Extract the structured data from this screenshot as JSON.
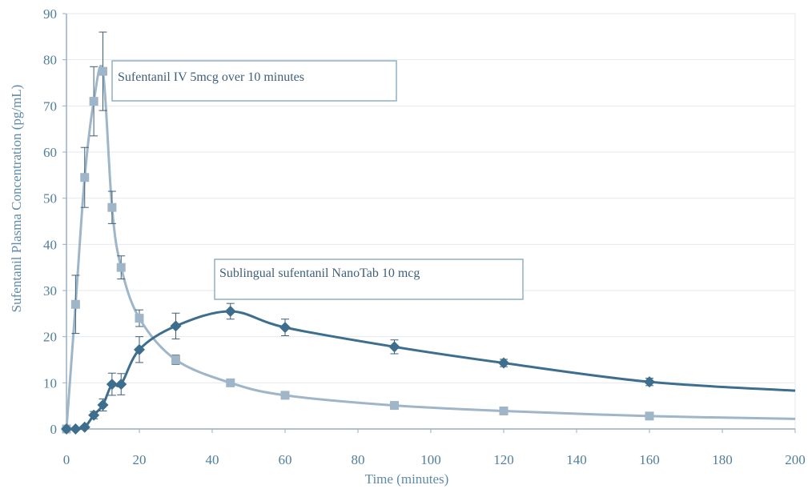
{
  "chart_data": {
    "type": "line",
    "title": "",
    "xlabel": "Time (minutes)",
    "ylabel": "Sufentanil  Plasma Concentration (pg/mL)",
    "xlim": [
      0,
      200
    ],
    "ylim": [
      0,
      90
    ],
    "x_ticks": [
      "0",
      "20",
      "40",
      "60",
      "80",
      "100",
      "120",
      "140",
      "160",
      "180",
      "200"
    ],
    "y_ticks": [
      "0",
      "10",
      "20",
      "30",
      "40",
      "50",
      "60",
      "70",
      "80",
      "90"
    ],
    "grid": "horizontal",
    "annotations": [
      "Sufentanil IV 5mcg over 10 minutes",
      "Sublingual sufentanil NanoTab 10 mcg"
    ],
    "colors": {
      "iv": "#9fb5c8",
      "sublingual": "#3d6e8e",
      "axis": "#9aaec0",
      "grid": "#e3e9ef"
    },
    "series": [
      {
        "marker": "square",
        "points": [
          {
            "x": 0,
            "y": 0,
            "err": 0
          },
          {
            "x": 2.5,
            "y": 27,
            "err": 6.3
          },
          {
            "x": 5,
            "y": 54.5,
            "err": 6.5
          },
          {
            "x": 7.5,
            "y": 71,
            "err": 7.5
          },
          {
            "x": 10,
            "y": 77.5,
            "err": 8.5
          },
          {
            "x": 12.5,
            "y": 48,
            "err": 3.5
          },
          {
            "x": 15,
            "y": 35,
            "err": 2.5
          },
          {
            "x": 20,
            "y": 24,
            "err": 1.8
          },
          {
            "x": 30,
            "y": 15,
            "err": 1.0
          },
          {
            "x": 45,
            "y": 10,
            "err": 0.6
          },
          {
            "x": 60,
            "y": 7.3,
            "err": 0.5
          },
          {
            "x": 90,
            "y": 5.1,
            "err": 0.4
          },
          {
            "x": 120,
            "y": 3.9,
            "err": 0.3
          },
          {
            "x": 160,
            "y": 2.8,
            "err": 0.3
          }
        ],
        "curve_end": {
          "x": 200,
          "y": 2.2
        }
      },
      {
        "marker": "diamond",
        "points": [
          {
            "x": 0,
            "y": 0,
            "err": 0
          },
          {
            "x": 2.5,
            "y": 0,
            "err": 0
          },
          {
            "x": 5,
            "y": 0.4,
            "err": 0.3
          },
          {
            "x": 7.5,
            "y": 3,
            "err": 0.8
          },
          {
            "x": 10,
            "y": 5.2,
            "err": 1.3
          },
          {
            "x": 12.5,
            "y": 9.7,
            "err": 2.4
          },
          {
            "x": 15,
            "y": 9.7,
            "err": 2.3
          },
          {
            "x": 20,
            "y": 17.2,
            "err": 2.8
          },
          {
            "x": 30,
            "y": 22.3,
            "err": 2.8
          },
          {
            "x": 45,
            "y": 25.5,
            "err": 1.7
          },
          {
            "x": 60,
            "y": 22,
            "err": 1.8
          },
          {
            "x": 90,
            "y": 17.8,
            "err": 1.5
          },
          {
            "x": 120,
            "y": 14.3,
            "err": 0.8
          },
          {
            "x": 160,
            "y": 10.2,
            "err": 0.8
          }
        ],
        "curve_end": {
          "x": 200,
          "y": 8.3
        }
      }
    ]
  }
}
